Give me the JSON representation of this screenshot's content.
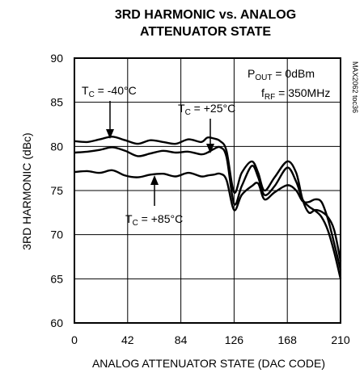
{
  "chart_data": {
    "type": "line",
    "title_line1": "3RD HARMONIC vs. ANALOG",
    "title_line2": "ATTENUATOR STATE",
    "xlabel": "ANALOG ATTENUATOR STATE (DAC CODE)",
    "ylabel": "3RD HARMONIC (dBc)",
    "xlim": [
      0,
      210
    ],
    "ylim": [
      60,
      90
    ],
    "xticks": [
      "0",
      "42",
      "84",
      "126",
      "168",
      "210"
    ],
    "yticks": [
      "60",
      "65",
      "70",
      "75",
      "80",
      "85",
      "90"
    ],
    "grid": true,
    "conditions": {
      "pout_main": "P",
      "pout_sub": "OUT",
      "pout_rest": " = 0dBm",
      "frf_main": "f",
      "frf_sub": "RF",
      "frf_rest": " = 350MHz"
    },
    "side_note": "MAX2062 toc36",
    "series": [
      {
        "name_main": "T",
        "name_sub": "C",
        "name_rest": " = -40°C",
        "x": [
          0,
          10,
          20,
          30,
          40,
          50,
          60,
          70,
          80,
          90,
          100,
          105,
          110,
          115,
          120,
          126,
          132,
          140,
          145,
          150,
          158,
          168,
          175,
          180,
          185,
          190,
          195,
          200,
          205,
          210
        ],
        "y": [
          80.6,
          80.5,
          80.8,
          81.1,
          80.7,
          80.3,
          80.7,
          80.5,
          80.3,
          80.8,
          80.5,
          81.0,
          80.9,
          80.6,
          79.5,
          74.8,
          77.0,
          78.3,
          77.0,
          75.0,
          76.5,
          78.3,
          77.0,
          74.0,
          72.5,
          72.8,
          72.6,
          72.0,
          70.5,
          67.0
        ]
      },
      {
        "name_main": "T",
        "name_sub": "C",
        "name_rest": " = +25°C",
        "x": [
          0,
          10,
          20,
          30,
          40,
          50,
          60,
          70,
          80,
          90,
          100,
          105,
          110,
          115,
          120,
          126,
          132,
          140,
          145,
          150,
          158,
          168,
          175,
          180,
          185,
          190,
          195,
          200,
          205,
          210
        ],
        "y": [
          79.3,
          79.4,
          79.6,
          79.9,
          79.5,
          78.9,
          79.2,
          79.5,
          79.3,
          79.4,
          79.1,
          79.3,
          79.7,
          79.9,
          78.8,
          73.5,
          75.5,
          77.8,
          76.5,
          74.5,
          75.5,
          77.6,
          76.0,
          74.0,
          73.2,
          72.7,
          72.0,
          70.5,
          68.0,
          65.0
        ]
      },
      {
        "name_main": "T",
        "name_sub": "C",
        "name_rest": " = +85°C",
        "x": [
          0,
          10,
          20,
          30,
          40,
          50,
          60,
          70,
          80,
          90,
          100,
          105,
          110,
          115,
          120,
          126,
          132,
          140,
          145,
          150,
          158,
          168,
          175,
          180,
          185,
          190,
          195,
          200,
          205,
          210
        ],
        "y": [
          77.1,
          77.2,
          77.0,
          77.3,
          76.7,
          76.5,
          76.8,
          76.9,
          76.6,
          77.0,
          76.6,
          76.7,
          76.8,
          76.9,
          76.2,
          72.8,
          74.5,
          75.5,
          75.8,
          74.0,
          74.8,
          75.6,
          75.0,
          73.8,
          73.7,
          74.0,
          73.7,
          71.8,
          69.0,
          66.0
        ]
      }
    ]
  }
}
